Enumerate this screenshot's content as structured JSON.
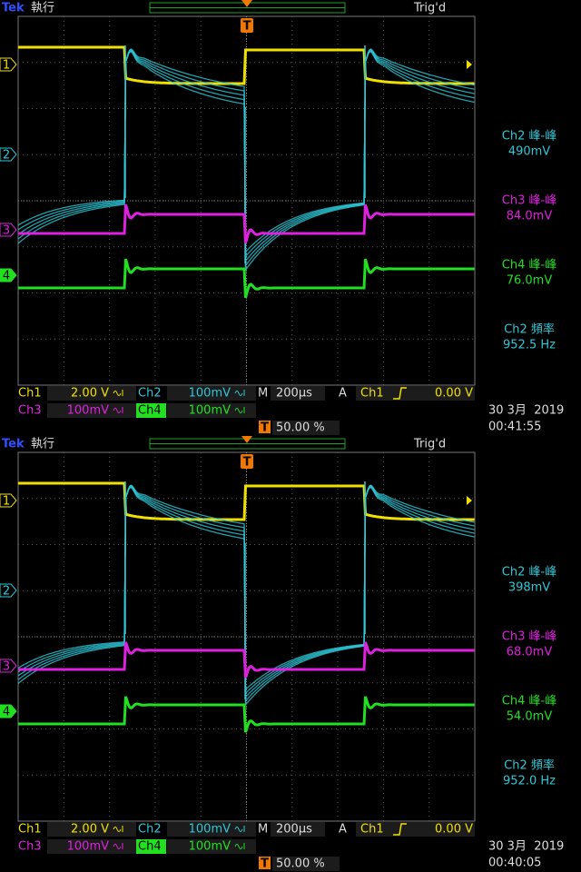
{
  "screens": [
    {
      "header": {
        "brand": "Tek",
        "run_state": "執行",
        "trigger_state": "Trig'd"
      },
      "trigger_marker": "T",
      "channel_markers": [
        "1",
        "2",
        "3",
        "4"
      ],
      "measurements": [
        {
          "name": "Ch2 峰-峰",
          "value": "490mV"
        },
        {
          "name": "Ch3 峰-峰",
          "value": "84.0mV"
        },
        {
          "name": "Ch4 峰-峰",
          "value": "76.0mV"
        },
        {
          "name": "Ch2 頻率",
          "value": "952.5 Hz"
        }
      ],
      "readout": {
        "ch1": {
          "label": "Ch1",
          "scale": "2.00 V"
        },
        "ch2": {
          "label": "Ch2",
          "scale": "100mV"
        },
        "ch3": {
          "label": "Ch3",
          "scale": "100mV"
        },
        "ch4": {
          "label": "Ch4",
          "scale": "100mV"
        },
        "timebase": {
          "label": "M",
          "value": "200µs"
        },
        "trigger": {
          "mode": "A",
          "source": "Ch1",
          "level": "0.00 V"
        },
        "trigger_position": {
          "marker": "T",
          "value": "50.00 %"
        }
      },
      "date": "30 3月  2019",
      "time": "00:41:55"
    },
    {
      "header": {
        "brand": "Tek",
        "run_state": "執行",
        "trigger_state": "Trig'd"
      },
      "trigger_marker": "T",
      "channel_markers": [
        "1",
        "2",
        "3",
        "4"
      ],
      "measurements": [
        {
          "name": "Ch2 峰-峰",
          "value": "398mV"
        },
        {
          "name": "Ch3 峰-峰",
          "value": "68.0mV"
        },
        {
          "name": "Ch4 峰-峰",
          "value": "54.0mV"
        },
        {
          "name": "Ch2 頻率",
          "value": "952.0 Hz"
        }
      ],
      "readout": {
        "ch1": {
          "label": "Ch1",
          "scale": "2.00 V"
        },
        "ch2": {
          "label": "Ch2",
          "scale": "100mV"
        },
        "ch3": {
          "label": "Ch3",
          "scale": "100mV"
        },
        "ch4": {
          "label": "Ch4",
          "scale": "100mV"
        },
        "timebase": {
          "label": "M",
          "value": "200µs"
        },
        "trigger": {
          "mode": "A",
          "source": "Ch1",
          "level": "0.00 V"
        },
        "trigger_position": {
          "marker": "T",
          "value": "50.00 %"
        }
      },
      "date": "30 3月  2019",
      "time": "00:40:05"
    }
  ]
}
